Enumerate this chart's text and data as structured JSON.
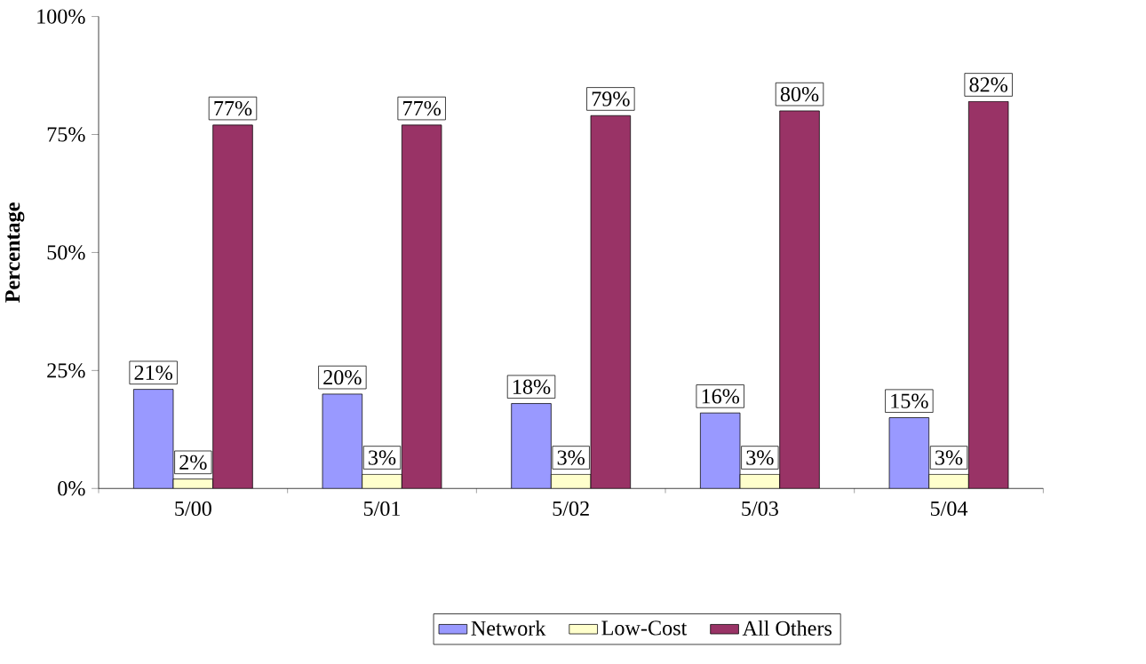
{
  "chart_data": {
    "type": "bar",
    "ylabel": "Percentage",
    "categories": [
      "5/00",
      "5/01",
      "5/02",
      "5/03",
      "5/04"
    ],
    "series": [
      {
        "name": "Network",
        "color": "#9999ff",
        "values": [
          21,
          20,
          18,
          16,
          15
        ],
        "value_labels": [
          "21%",
          "20%",
          "18%",
          "16%",
          "15%"
        ]
      },
      {
        "name": "Low-Cost",
        "color": "#ffffcc",
        "values": [
          2,
          3,
          3,
          3,
          3
        ],
        "value_labels": [
          "2%",
          "3%",
          "3%",
          "3%",
          "3%"
        ]
      },
      {
        "name": "All Others",
        "color": "#993366",
        "values": [
          77,
          77,
          79,
          80,
          82
        ],
        "value_labels": [
          "77%",
          "77%",
          "79%",
          "80%",
          "82%"
        ]
      }
    ],
    "ylim": [
      0,
      100
    ],
    "yticks": [
      {
        "value": 0,
        "label": "0%"
      },
      {
        "value": 25,
        "label": "25%"
      },
      {
        "value": 50,
        "label": "50%"
      },
      {
        "value": 75,
        "label": "75%"
      },
      {
        "value": 100,
        "label": "100%"
      }
    ],
    "grid": false,
    "legend": "bottom"
  }
}
